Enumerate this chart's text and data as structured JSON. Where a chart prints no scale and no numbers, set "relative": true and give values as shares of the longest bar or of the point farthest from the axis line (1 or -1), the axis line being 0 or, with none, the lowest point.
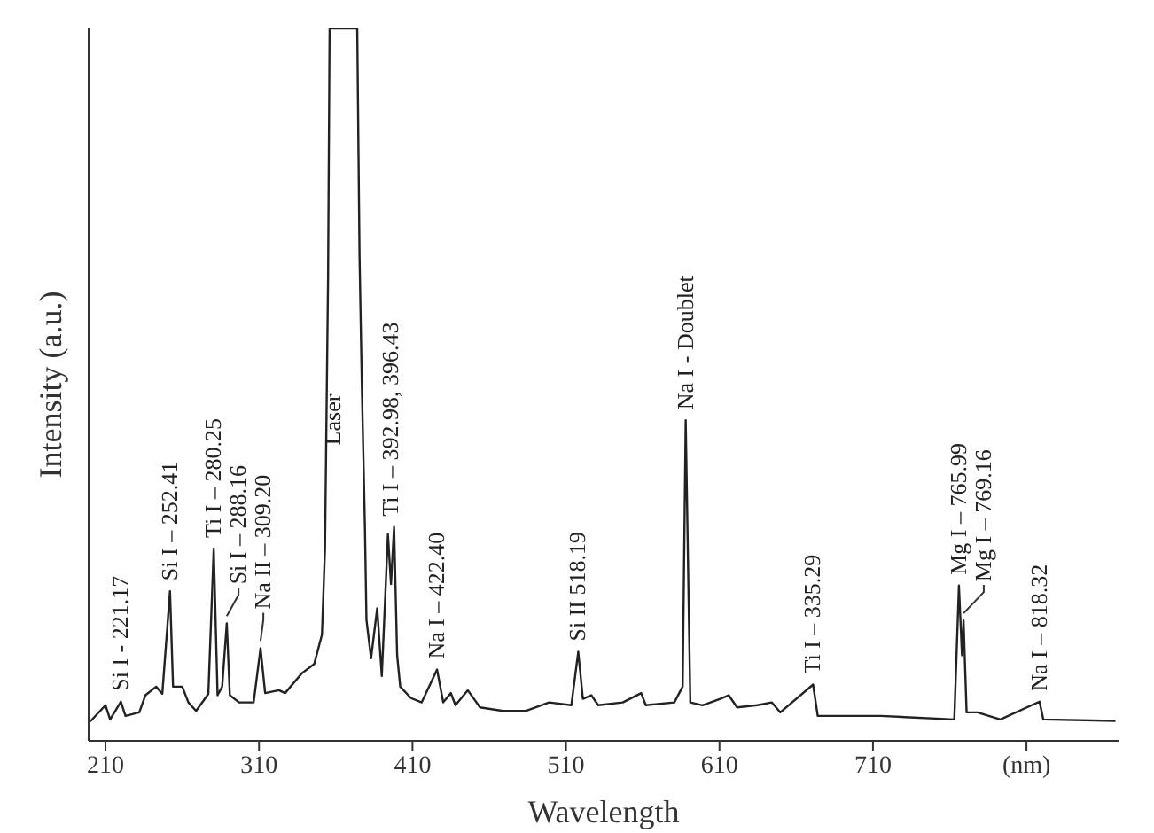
{
  "chart_data": {
    "type": "line",
    "relative": true,
    "xlabel": "Wavelength",
    "ylabel": "Intensity (a.u.)",
    "xlim": [
      199,
      870
    ],
    "xticks": [
      210,
      310,
      410,
      510,
      610,
      710,
      {
        "value": 810,
        "label": "(nm)"
      }
    ],
    "tick_labels": "x",
    "grid": false,
    "marker": "none",
    "line_style": "solid",
    "series": [
      {
        "color": "#222222",
        "x": [
          200,
          210,
          213,
          220,
          223,
          232,
          236,
          243,
          247,
          252,
          254,
          260,
          264,
          269,
          277,
          280.5,
          283,
          286,
          289,
          291,
          297,
          306.5,
          311,
          314,
          323,
          327,
          338,
          346,
          351,
          353,
          355,
          356,
          374,
          375.5,
          377,
          379,
          380,
          383,
          387,
          390,
          394,
          396,
          398,
          400,
          402,
          409,
          416,
          426,
          430,
          435,
          438,
          446,
          454,
          469,
          484,
          499,
          513.5,
          518,
          521,
          526.5,
          531,
          547,
          559,
          562,
          580.6,
          586,
          588,
          591,
          599,
          610.5,
          616,
          621.5,
          634.7,
          644,
          649.6,
          671,
          674,
          715,
          763,
          766,
          768,
          769,
          771,
          778,
          793,
          818.5,
          821,
          868
        ],
        "values": [
          0.027,
          0.05,
          0.03,
          0.055,
          0.035,
          0.04,
          0.064,
          0.076,
          0.066,
          0.21,
          0.076,
          0.076,
          0.054,
          0.042,
          0.066,
          0.27,
          0.064,
          0.076,
          0.165,
          0.064,
          0.054,
          0.054,
          0.13,
          0.067,
          0.071,
          0.067,
          0.095,
          0.108,
          0.149,
          0.27,
          0.65,
          1,
          1,
          0.68,
          0.5,
          0.3,
          0.17,
          0.116,
          0.186,
          0.091,
          0.29,
          0.22,
          0.3,
          0.12,
          0.076,
          0.06,
          0.054,
          0.1,
          0.054,
          0.067,
          0.05,
          0.071,
          0.047,
          0.042,
          0.042,
          0.054,
          0.05,
          0.125,
          0.059,
          0.064,
          0.05,
          0.054,
          0.067,
          0.05,
          0.054,
          0.076,
          0.45,
          0.054,
          0.05,
          0.059,
          0.064,
          0.047,
          0.05,
          0.054,
          0.04,
          0.079,
          0.035,
          0.035,
          0.03,
          0.218,
          0.12,
          0.169,
          0.04,
          0.04,
          0.03,
          0.055,
          0.03,
          0.028
        ]
      }
    ],
    "annotations": [
      {
        "text": "Si I - 221.17",
        "x": 220,
        "y": 0.055
      },
      {
        "text": "Si I – 252.41",
        "x": 252,
        "y": 0.21
      },
      {
        "text": "Ti I – 280.25",
        "x": 280.5,
        "y": 0.27
      },
      {
        "text": "Si I – 288.16",
        "x": 289,
        "y": 0.165
      },
      {
        "text": "Na II – 309.20",
        "x": 311,
        "y": 0.13
      },
      "Laser",
      {
        "text": "Ti I – 392.98, 396.43",
        "x": 396,
        "y": 0.3
      },
      {
        "text": "Na I – 422.40",
        "x": 426,
        "y": 0.1
      },
      {
        "text": "Si II 518.19",
        "x": 518,
        "y": 0.125
      },
      {
        "text": "Na I - Doublet",
        "x": 588,
        "y": 0.45
      },
      {
        "text": "Ti I – 335.29",
        "x": 671,
        "y": 0.079
      },
      {
        "text": "Mg I – 765.99",
        "x": 766,
        "y": 0.218
      },
      {
        "text": "Mg I – 769.16",
        "x": 769,
        "y": 0.169
      },
      {
        "text": "Na I – 818.32",
        "x": 818.5,
        "y": 0.055
      }
    ]
  }
}
